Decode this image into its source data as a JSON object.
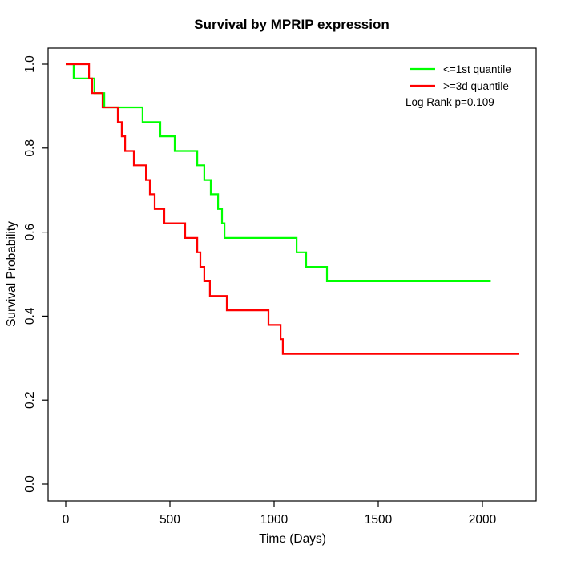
{
  "chart_data": {
    "type": "line",
    "subtype": "kaplan-meier-step",
    "title": "Survival by MPRIP expression",
    "xlabel": "Time (Days)",
    "ylabel": "Survival Probability",
    "xlim": [
      0,
      2254
    ],
    "ylim": [
      0.0,
      1.0
    ],
    "grid": false,
    "legend_position": "top-right",
    "x_ticks": [
      0,
      500,
      1000,
      1500,
      2000
    ],
    "x_tick_labels": [
      "0",
      "500",
      "1000",
      "1500",
      "2000"
    ],
    "y_ticks": [
      0.0,
      0.2,
      0.4,
      0.6,
      0.8,
      1.0
    ],
    "y_tick_labels": [
      "0.0",
      "0.2",
      "0.4",
      "0.6",
      "0.8",
      "1.0"
    ],
    "legend": {
      "entries": [
        {
          "label": "<=1st quantile",
          "color": "#00FF00"
        },
        {
          "label": ">=3d quantile",
          "color": "#FF0000"
        }
      ],
      "annotation": "Log Rank p=0.109"
    },
    "series": [
      {
        "name": "<=1st quantile",
        "color": "#00FF00",
        "points": [
          [
            0,
            1.0
          ],
          [
            38,
            0.966
          ],
          [
            138,
            0.931
          ],
          [
            185,
            0.897
          ],
          [
            369,
            0.862
          ],
          [
            454,
            0.828
          ],
          [
            523,
            0.793
          ],
          [
            631,
            0.759
          ],
          [
            665,
            0.724
          ],
          [
            696,
            0.69
          ],
          [
            731,
            0.655
          ],
          [
            750,
            0.621
          ],
          [
            762,
            0.586
          ],
          [
            1108,
            0.552
          ],
          [
            1154,
            0.517
          ],
          [
            1254,
            0.483
          ],
          [
            2040,
            0.483
          ]
        ]
      },
      {
        "name": ">=3d quantile",
        "color": "#FF0000",
        "points": [
          [
            0,
            1.0
          ],
          [
            112,
            0.966
          ],
          [
            127,
            0.931
          ],
          [
            177,
            0.897
          ],
          [
            250,
            0.862
          ],
          [
            269,
            0.828
          ],
          [
            285,
            0.793
          ],
          [
            327,
            0.759
          ],
          [
            385,
            0.724
          ],
          [
            404,
            0.69
          ],
          [
            427,
            0.655
          ],
          [
            473,
            0.621
          ],
          [
            573,
            0.586
          ],
          [
            631,
            0.552
          ],
          [
            646,
            0.517
          ],
          [
            665,
            0.483
          ],
          [
            692,
            0.448
          ],
          [
            773,
            0.414
          ],
          [
            973,
            0.379
          ],
          [
            1031,
            0.345
          ],
          [
            1042,
            0.31
          ],
          [
            2175,
            0.31
          ]
        ]
      }
    ]
  }
}
